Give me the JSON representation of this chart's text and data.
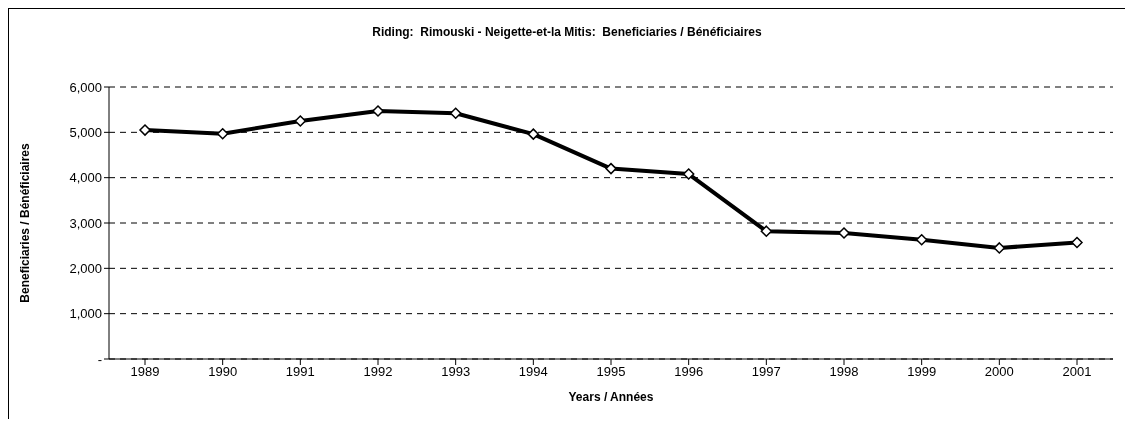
{
  "chart_data": {
    "type": "line",
    "title": "Riding:  Rimouski - Neigette-et-la Mitis:  Beneficiaries / Bénéficiaires",
    "xlabel": "Years / Années",
    "ylabel": "Beneficiaries / Bénéficiaires",
    "categories": [
      "1989",
      "1990",
      "1991",
      "1992",
      "1993",
      "1994",
      "1995",
      "1996",
      "1997",
      "1998",
      "1999",
      "2000",
      "2001"
    ],
    "series": [
      {
        "color": "#000000",
        "values": [
          5050,
          4970,
          5250,
          5470,
          5420,
          4960,
          4200,
          4080,
          2820,
          2780,
          2630,
          2450,
          2570
        ]
      }
    ],
    "ylim": [
      0,
      6000
    ],
    "yticks": [
      {
        "value": 0,
        "label": "-"
      },
      {
        "value": 1000,
        "label": "1,000"
      },
      {
        "value": 2000,
        "label": "2,000"
      },
      {
        "value": 3000,
        "label": "3,000"
      },
      {
        "value": 4000,
        "label": "4,000"
      },
      {
        "value": 5000,
        "label": "5,000"
      },
      {
        "value": 6000,
        "label": "6,000"
      }
    ],
    "grid": "y",
    "marker": "diamond",
    "line_style": "solid"
  }
}
